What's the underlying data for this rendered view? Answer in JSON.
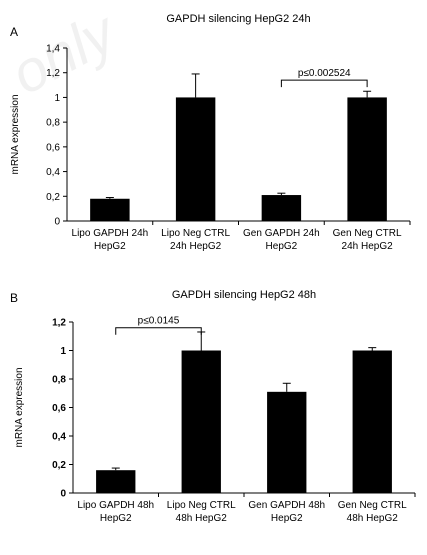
{
  "watermark": "only",
  "chart_data": [
    {
      "type": "bar",
      "panel_label": "A",
      "title": "GAPDH silencing HepG2 24h",
      "xlabel": "",
      "ylabel": "mRNA expression",
      "categories": [
        [
          "Lipo GAPDH 24h",
          "HepG2"
        ],
        [
          "Lipo Neg CTRL",
          "24h HepG2"
        ],
        [
          "Gen GAPDH 24h",
          "HepG2"
        ],
        [
          "Gen Neg CTRL",
          "24h HepG2"
        ]
      ],
      "values": [
        0.18,
        1.0,
        0.21,
        1.0
      ],
      "errors": [
        0.01,
        0.19,
        0.015,
        0.05
      ],
      "ylim": [
        0,
        1.4
      ],
      "yticks": [
        "0",
        "0,2",
        "0,4",
        "0,6",
        "0,8",
        "1",
        "1,2",
        "1,4"
      ],
      "bar_color": "#000000",
      "annotations": [
        {
          "text": "p≤0.002524",
          "from": 2,
          "to": 3,
          "level": 1.14
        }
      ],
      "grid": false
    },
    {
      "type": "bar",
      "panel_label": "B",
      "title": "GAPDH silencing HepG2 48h",
      "xlabel": "",
      "ylabel": "mRNA expression",
      "categories": [
        [
          "Lipo GAPDH 48h",
          "HepG2"
        ],
        [
          "Lipo Neg CTRL",
          "48h HepG2"
        ],
        [
          "Gen GAPDH 48h",
          "HepG2"
        ],
        [
          "Gen Neg CTRL",
          "48h HepG2"
        ]
      ],
      "values": [
        0.16,
        1.0,
        0.71,
        1.0
      ],
      "errors": [
        0.015,
        0.13,
        0.06,
        0.02
      ],
      "ylim": [
        0,
        1.2
      ],
      "yticks": [
        "0",
        "0,2",
        "0,4",
        "0,6",
        "0,8",
        "1",
        "1,2"
      ],
      "bar_color": "#000000",
      "annotations": [
        {
          "text": "p≤0.0145",
          "from": 0,
          "to": 1,
          "level": 1.16
        }
      ],
      "grid": false
    }
  ]
}
